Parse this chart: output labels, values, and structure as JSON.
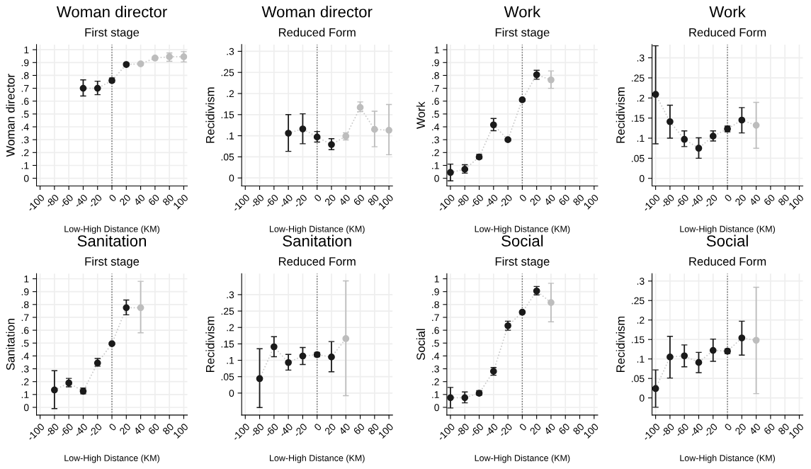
{
  "chart_data": [
    {
      "type": "scatter",
      "title": "Woman director",
      "subtitle": "First stage",
      "xlabel": "Low-High Distance (KM)",
      "ylabel": "Woman director",
      "xlim": [
        -105,
        105
      ],
      "xticks": [
        -100,
        -80,
        -60,
        -40,
        -20,
        0,
        20,
        40,
        60,
        80,
        100
      ],
      "ylim": [
        -0.06,
        1.04
      ],
      "yticks": [
        0,
        {
          "value": 0.1,
          "label": ".1"
        },
        {
          "value": 0.2,
          "label": ".2"
        },
        {
          "value": 0.3,
          "label": ".3"
        },
        {
          "value": 0.4,
          "label": ".4"
        },
        {
          "value": 0.5,
          "label": ".5"
        },
        {
          "value": 0.6,
          "label": ".6"
        },
        {
          "value": 0.7,
          "label": ".7"
        },
        {
          "value": 0.8,
          "label": ".8"
        },
        {
          "value": 0.9,
          "label": ".9"
        },
        1
      ],
      "grid": true,
      "marker": "circle",
      "ref_lines": [
        {
          "axis": "x",
          "value": 0,
          "color": "#555555",
          "line_style": "dotted"
        }
      ],
      "series": [
        {
          "type": "line",
          "line_style": "dotted",
          "marker": "none",
          "color": "#c8c8c8",
          "x": [
            -40,
            -20,
            0,
            20,
            40,
            60,
            80,
            100
          ],
          "values": [
            0.7,
            0.7,
            0.76,
            0.885,
            0.89,
            0.935,
            0.945,
            0.945
          ]
        },
        {
          "color": "#1a1a1a",
          "x": [
            -40,
            -20,
            0,
            20
          ],
          "values": [
            0.7,
            0.7,
            0.76,
            0.885
          ],
          "errors": [
            [
              0.64,
              0.765
            ],
            [
              0.65,
              0.755
            ],
            [
              0.745,
              0.78
            ],
            [
              0.875,
              0.895
            ]
          ]
        },
        {
          "color": "#bdbdbd",
          "x": [
            40,
            60,
            80,
            100
          ],
          "values": [
            0.89,
            0.935,
            0.945,
            0.945
          ],
          "errors": [
            [
              0.88,
              0.9
            ],
            [
              0.925,
              0.945
            ],
            [
              0.91,
              0.975
            ],
            [
              0.905,
              0.985
            ]
          ]
        }
      ]
    },
    {
      "type": "scatter",
      "title": "Woman director",
      "subtitle": "Reduced Form",
      "xlabel": "Low-High Distance (KM)",
      "ylabel": "Recidivism",
      "xlim": [
        -105,
        105
      ],
      "xticks": [
        -100,
        -80,
        -60,
        -40,
        -20,
        0,
        20,
        40,
        60,
        80,
        100
      ],
      "ylim": [
        -0.019,
        0.316
      ],
      "yticks": [
        0,
        {
          "value": 0.05,
          "label": ".05"
        },
        {
          "value": 0.1,
          "label": ".1"
        },
        {
          "value": 0.15,
          "label": ".15"
        },
        {
          "value": 0.2,
          "label": ".2"
        },
        {
          "value": 0.25,
          "label": ".25"
        },
        {
          "value": 0.3,
          "label": ".3"
        }
      ],
      "grid": true,
      "marker": "circle",
      "ref_lines": [
        {
          "axis": "x",
          "value": 0,
          "color": "#555555",
          "line_style": "dotted"
        }
      ],
      "series": [
        {
          "type": "line",
          "line_style": "dotted",
          "marker": "none",
          "color": "#c8c8c8",
          "x": [
            -40,
            -20,
            0,
            20,
            40,
            60,
            80,
            100
          ],
          "values": [
            0.106,
            0.116,
            0.097,
            0.079,
            0.099,
            0.167,
            0.115,
            0.113
          ]
        },
        {
          "color": "#1a1a1a",
          "x": [
            -40,
            -20,
            0,
            20
          ],
          "values": [
            0.106,
            0.116,
            0.097,
            0.079
          ],
          "errors": [
            [
              0.063,
              0.15
            ],
            [
              0.081,
              0.152
            ],
            [
              0.085,
              0.11
            ],
            [
              0.067,
              0.093
            ]
          ]
        },
        {
          "color": "#bdbdbd",
          "x": [
            40,
            60,
            80,
            100
          ],
          "values": [
            0.099,
            0.167,
            0.115,
            0.113
          ],
          "errors": [
            [
              0.09,
              0.107
            ],
            [
              0.157,
              0.18
            ],
            [
              0.074,
              0.158
            ],
            [
              0.055,
              0.174
            ]
          ]
        }
      ]
    },
    {
      "type": "scatter",
      "title": "Work",
      "subtitle": "First stage",
      "xlabel": "Low-High Distance (KM)",
      "ylabel": "Work",
      "xlim": [
        -105,
        105
      ],
      "xticks": [
        -100,
        -80,
        -60,
        -40,
        -20,
        0,
        20,
        40,
        60,
        80,
        100
      ],
      "ylim": [
        -0.06,
        1.04
      ],
      "yticks": [
        0,
        {
          "value": 0.1,
          "label": ".1"
        },
        {
          "value": 0.2,
          "label": ".2"
        },
        {
          "value": 0.3,
          "label": ".3"
        },
        {
          "value": 0.4,
          "label": ".4"
        },
        {
          "value": 0.5,
          "label": ".5"
        },
        {
          "value": 0.6,
          "label": ".6"
        },
        {
          "value": 0.7,
          "label": ".7"
        },
        {
          "value": 0.8,
          "label": ".8"
        },
        {
          "value": 0.9,
          "label": ".9"
        },
        1
      ],
      "grid": true,
      "marker": "circle",
      "ref_lines": [
        {
          "axis": "x",
          "value": 0,
          "color": "#555555",
          "line_style": "dotted"
        }
      ],
      "series": [
        {
          "type": "line",
          "line_style": "dotted",
          "marker": "none",
          "color": "#c8c8c8",
          "x": [
            -100,
            -80,
            -60,
            -40,
            -20,
            0,
            20,
            40
          ],
          "values": [
            0.045,
            0.07,
            0.165,
            0.415,
            0.3,
            0.61,
            0.805,
            0.765
          ]
        },
        {
          "color": "#1a1a1a",
          "x": [
            -100,
            -80,
            -60,
            -40,
            -20,
            0,
            20
          ],
          "values": [
            0.045,
            0.07,
            0.165,
            0.415,
            0.3,
            0.61,
            0.805
          ],
          "errors": [
            [
              -0.02,
              0.11
            ],
            [
              0.04,
              0.105
            ],
            [
              0.15,
              0.185
            ],
            [
              0.37,
              0.465
            ],
            [
              0.29,
              0.31
            ],
            [
              0.6,
              0.62
            ],
            [
              0.77,
              0.84
            ]
          ]
        },
        {
          "color": "#bdbdbd",
          "x": [
            40
          ],
          "values": [
            0.765
          ],
          "errors": [
            [
              0.7,
              0.835
            ]
          ]
        }
      ]
    },
    {
      "type": "scatter",
      "title": "Work",
      "subtitle": "Reduced Form",
      "xlabel": "Low-High Distance (KM)",
      "ylabel": "Recidivism",
      "xlim": [
        -105,
        105
      ],
      "xticks": [
        -100,
        -80,
        -60,
        -40,
        -20,
        0,
        20,
        40,
        60,
        80,
        100
      ],
      "ylim": [
        -0.019,
        0.333
      ],
      "yticks": [
        0,
        {
          "value": 0.05,
          "label": ".05"
        },
        {
          "value": 0.1,
          "label": ".1"
        },
        {
          "value": 0.15,
          "label": ".15"
        },
        {
          "value": 0.2,
          "label": ".2"
        },
        {
          "value": 0.25,
          "label": ".25"
        },
        {
          "value": 0.3,
          "label": ".3"
        }
      ],
      "grid": true,
      "marker": "circle",
      "ref_lines": [
        {
          "axis": "x",
          "value": 0,
          "color": "#555555",
          "line_style": "dotted"
        }
      ],
      "series": [
        {
          "type": "line",
          "line_style": "dotted",
          "marker": "none",
          "color": "#c8c8c8",
          "x": [
            -100,
            -80,
            -60,
            -40,
            -20,
            0,
            20,
            40
          ],
          "values": [
            0.209,
            0.141,
            0.097,
            0.075,
            0.105,
            0.123,
            0.145,
            0.132
          ]
        },
        {
          "color": "#1a1a1a",
          "x": [
            -100,
            -80,
            -60,
            -40,
            -20,
            0,
            20
          ],
          "values": [
            0.209,
            0.141,
            0.097,
            0.075,
            0.105,
            0.123,
            0.145
          ],
          "errors": [
            [
              0.086,
              0.33
            ],
            [
              0.1,
              0.182
            ],
            [
              0.079,
              0.118
            ],
            [
              0.05,
              0.101
            ],
            [
              0.093,
              0.118
            ],
            [
              0.116,
              0.13
            ],
            [
              0.113,
              0.176
            ]
          ]
        },
        {
          "color": "#bdbdbd",
          "x": [
            40
          ],
          "values": [
            0.132
          ],
          "errors": [
            [
              0.075,
              0.189
            ]
          ]
        }
      ]
    },
    {
      "type": "scatter",
      "title": "Sanitation",
      "subtitle": "First stage",
      "xlabel": "Low-High Distance (KM)",
      "ylabel": "Sanitation",
      "xlim": [
        -105,
        105
      ],
      "xticks": [
        -100,
        -80,
        -60,
        -40,
        -20,
        0,
        20,
        40,
        60,
        80,
        100
      ],
      "ylim": [
        -0.06,
        1.04
      ],
      "yticks": [
        0,
        {
          "value": 0.1,
          "label": ".1"
        },
        {
          "value": 0.2,
          "label": ".2"
        },
        {
          "value": 0.3,
          "label": ".3"
        },
        {
          "value": 0.4,
          "label": ".4"
        },
        {
          "value": 0.5,
          "label": ".5"
        },
        {
          "value": 0.6,
          "label": ".6"
        },
        {
          "value": 0.7,
          "label": ".7"
        },
        {
          "value": 0.8,
          "label": ".8"
        },
        {
          "value": 0.9,
          "label": ".9"
        },
        1
      ],
      "grid": true,
      "marker": "circle",
      "ref_lines": [
        {
          "axis": "x",
          "value": 0,
          "color": "#555555",
          "line_style": "dotted"
        }
      ],
      "series": [
        {
          "type": "line",
          "line_style": "dotted",
          "marker": "none",
          "color": "#c8c8c8",
          "x": [
            -80,
            -60,
            -40,
            -20,
            0,
            20,
            40
          ],
          "values": [
            0.135,
            0.19,
            0.125,
            0.345,
            0.495,
            0.775,
            0.775
          ]
        },
        {
          "color": "#1a1a1a",
          "x": [
            -80,
            -60,
            -40,
            -20,
            0,
            20
          ],
          "values": [
            0.135,
            0.19,
            0.125,
            0.345,
            0.495,
            0.775
          ],
          "errors": [
            [
              -0.01,
              0.285
            ],
            [
              0.16,
              0.225
            ],
            [
              0.105,
              0.15
            ],
            [
              0.32,
              0.38
            ],
            [
              0.49,
              0.505
            ],
            [
              0.72,
              0.835
            ]
          ]
        },
        {
          "color": "#bdbdbd",
          "x": [
            40
          ],
          "values": [
            0.775
          ],
          "errors": [
            [
              0.58,
              0.98
            ]
          ]
        }
      ]
    },
    {
      "type": "scatter",
      "title": "Sanitation",
      "subtitle": "Reduced Form",
      "xlabel": "Low-High Distance (KM)",
      "ylabel": "Recidivism",
      "xlim": [
        -105,
        105
      ],
      "xticks": [
        -100,
        -80,
        -60,
        -40,
        -20,
        0,
        20,
        40,
        60,
        80,
        100
      ],
      "ylim": [
        -0.067,
        0.364
      ],
      "yticks": [
        0,
        {
          "value": 0.05,
          "label": ".05"
        },
        {
          "value": 0.1,
          "label": ".1"
        },
        {
          "value": 0.15,
          "label": ".15"
        },
        {
          "value": 0.2,
          "label": ".2"
        },
        {
          "value": 0.25,
          "label": ".25"
        },
        {
          "value": 0.3,
          "label": ".3"
        }
      ],
      "grid": true,
      "marker": "circle",
      "ref_lines": [
        {
          "axis": "x",
          "value": 0,
          "color": "#555555",
          "line_style": "dotted"
        }
      ],
      "series": [
        {
          "type": "line",
          "line_style": "dotted",
          "marker": "none",
          "color": "#c8c8c8",
          "x": [
            -80,
            -60,
            -40,
            -20,
            0,
            20,
            40
          ],
          "values": [
            0.044,
            0.141,
            0.093,
            0.113,
            0.117,
            0.11,
            0.166
          ]
        },
        {
          "color": "#1a1a1a",
          "x": [
            -80,
            -60,
            -40,
            -20,
            0,
            20
          ],
          "values": [
            0.044,
            0.141,
            0.093,
            0.113,
            0.117,
            0.11
          ],
          "errors": [
            [
              -0.044,
              0.135
            ],
            [
              0.111,
              0.172
            ],
            [
              0.07,
              0.118
            ],
            [
              0.087,
              0.139
            ],
            [
              0.111,
              0.124
            ],
            [
              0.065,
              0.157
            ]
          ]
        },
        {
          "color": "#bdbdbd",
          "x": [
            40
          ],
          "values": [
            0.166
          ],
          "errors": [
            [
              -0.008,
              0.342
            ]
          ]
        }
      ]
    },
    {
      "type": "scatter",
      "title": "Social",
      "subtitle": "First stage",
      "xlabel": "Low-High Distance (KM)",
      "ylabel": "Social",
      "xlim": [
        -105,
        105
      ],
      "xticks": [
        -100,
        -80,
        -60,
        -40,
        -20,
        0,
        20,
        40,
        60,
        80,
        100
      ],
      "ylim": [
        -0.06,
        1.04
      ],
      "yticks": [
        0,
        {
          "value": 0.1,
          "label": ".1"
        },
        {
          "value": 0.2,
          "label": ".2"
        },
        {
          "value": 0.3,
          "label": ".3"
        },
        {
          "value": 0.4,
          "label": ".4"
        },
        {
          "value": 0.5,
          "label": ".5"
        },
        {
          "value": 0.6,
          "label": ".6"
        },
        {
          "value": 0.7,
          "label": ".7"
        },
        {
          "value": 0.8,
          "label": ".8"
        },
        {
          "value": 0.9,
          "label": ".9"
        },
        1
      ],
      "grid": true,
      "marker": "circle",
      "ref_lines": [
        {
          "axis": "x",
          "value": 0,
          "color": "#555555",
          "line_style": "dotted"
        }
      ],
      "series": [
        {
          "type": "line",
          "line_style": "dotted",
          "marker": "none",
          "color": "#c8c8c8",
          "x": [
            -100,
            -80,
            -60,
            -40,
            -20,
            0,
            20,
            40
          ],
          "values": [
            0.075,
            0.075,
            0.11,
            0.28,
            0.635,
            0.74,
            0.905,
            0.815
          ]
        },
        {
          "color": "#1a1a1a",
          "x": [
            -100,
            -80,
            -60,
            -40,
            -20,
            0,
            20
          ],
          "values": [
            0.075,
            0.075,
            0.11,
            0.28,
            0.635,
            0.74,
            0.905
          ],
          "errors": [
            [
              -0.005,
              0.155
            ],
            [
              0.035,
              0.12
            ],
            [
              0.095,
              0.13
            ],
            [
              0.25,
              0.31
            ],
            [
              0.6,
              0.67
            ],
            [
              0.735,
              0.75
            ],
            [
              0.875,
              0.94
            ]
          ]
        },
        {
          "color": "#bdbdbd",
          "x": [
            40
          ],
          "values": [
            0.815
          ],
          "errors": [
            [
              0.665,
              0.965
            ]
          ]
        }
      ]
    },
    {
      "type": "scatter",
      "title": "Social",
      "subtitle": "Reduced Form",
      "xlabel": "Low-High Distance (KM)",
      "ylabel": "Recidivism",
      "xlim": [
        -105,
        105
      ],
      "xticks": [
        -100,
        -80,
        -60,
        -40,
        -20,
        0,
        20,
        40,
        60,
        80,
        100
      ],
      "ylim": [
        -0.044,
        0.319
      ],
      "yticks": [
        0,
        {
          "value": 0.05,
          "label": ".05"
        },
        {
          "value": 0.1,
          "label": ".1"
        },
        {
          "value": 0.15,
          "label": ".15"
        },
        {
          "value": 0.2,
          "label": ".2"
        },
        {
          "value": 0.25,
          "label": ".25"
        },
        {
          "value": 0.3,
          "label": ".3"
        }
      ],
      "grid": true,
      "marker": "circle",
      "ref_lines": [
        {
          "axis": "x",
          "value": 0,
          "color": "#555555",
          "line_style": "dotted"
        }
      ],
      "series": [
        {
          "type": "line",
          "line_style": "dotted",
          "marker": "none",
          "color": "#c8c8c8",
          "x": [
            -100,
            -80,
            -60,
            -40,
            -20,
            0,
            20,
            40
          ],
          "values": [
            0.024,
            0.105,
            0.108,
            0.091,
            0.122,
            0.12,
            0.154,
            0.148
          ]
        },
        {
          "color": "#1a1a1a",
          "x": [
            -100,
            -80,
            -60,
            -40,
            -20,
            0,
            20
          ],
          "values": [
            0.024,
            0.105,
            0.108,
            0.091,
            0.122,
            0.12,
            0.154
          ],
          "errors": [
            [
              -0.024,
              0.072
            ],
            [
              0.051,
              0.158
            ],
            [
              0.08,
              0.136
            ],
            [
              0.065,
              0.117
            ],
            [
              0.094,
              0.151
            ],
            [
              0.114,
              0.126
            ],
            [
              0.11,
              0.197
            ]
          ]
        },
        {
          "color": "#bdbdbd",
          "x": [
            40
          ],
          "values": [
            0.148
          ],
          "errors": [
            [
              0.011,
              0.284
            ]
          ]
        }
      ]
    }
  ]
}
